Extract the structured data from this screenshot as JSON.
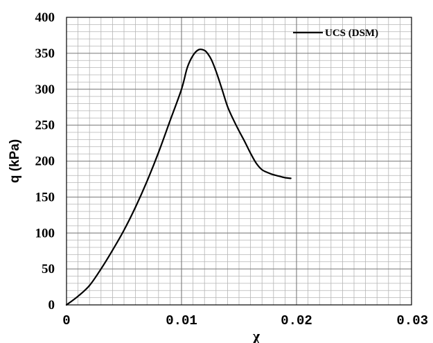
{
  "chart_data": {
    "type": "line",
    "xlabel": "χ",
    "ylabel": "q (kPa)",
    "xlim": [
      0,
      0.03
    ],
    "ylim": [
      0,
      400
    ],
    "x_ticks": [
      "0",
      "0.01",
      "0.02",
      "0.03"
    ],
    "y_ticks": [
      "0",
      "50",
      "100",
      "150",
      "200",
      "250",
      "300",
      "350",
      "400"
    ],
    "grid": true,
    "legend": {
      "position": "top-right",
      "entries": [
        "UCS (DSM)"
      ]
    },
    "series": [
      {
        "name": "UCS (DSM)",
        "color": "#000000",
        "x": [
          0,
          0.001,
          0.002,
          0.003,
          0.004,
          0.005,
          0.006,
          0.007,
          0.008,
          0.009,
          0.01,
          0.0105,
          0.011,
          0.0115,
          0.012,
          0.0123,
          0.0126,
          0.013,
          0.0135,
          0.014,
          0.0145,
          0.015,
          0.0155,
          0.016,
          0.0165,
          0.017,
          0.0175,
          0.018,
          0.0185,
          0.019,
          0.0195
        ],
        "y": [
          0,
          12,
          27,
          50,
          76,
          104,
          136,
          172,
          212,
          256,
          300,
          330,
          347,
          355,
          354,
          349,
          341,
          325,
          301,
          276,
          258,
          242,
          227,
          211,
          197,
          188,
          184,
          181,
          179,
          177,
          176
        ]
      }
    ]
  }
}
